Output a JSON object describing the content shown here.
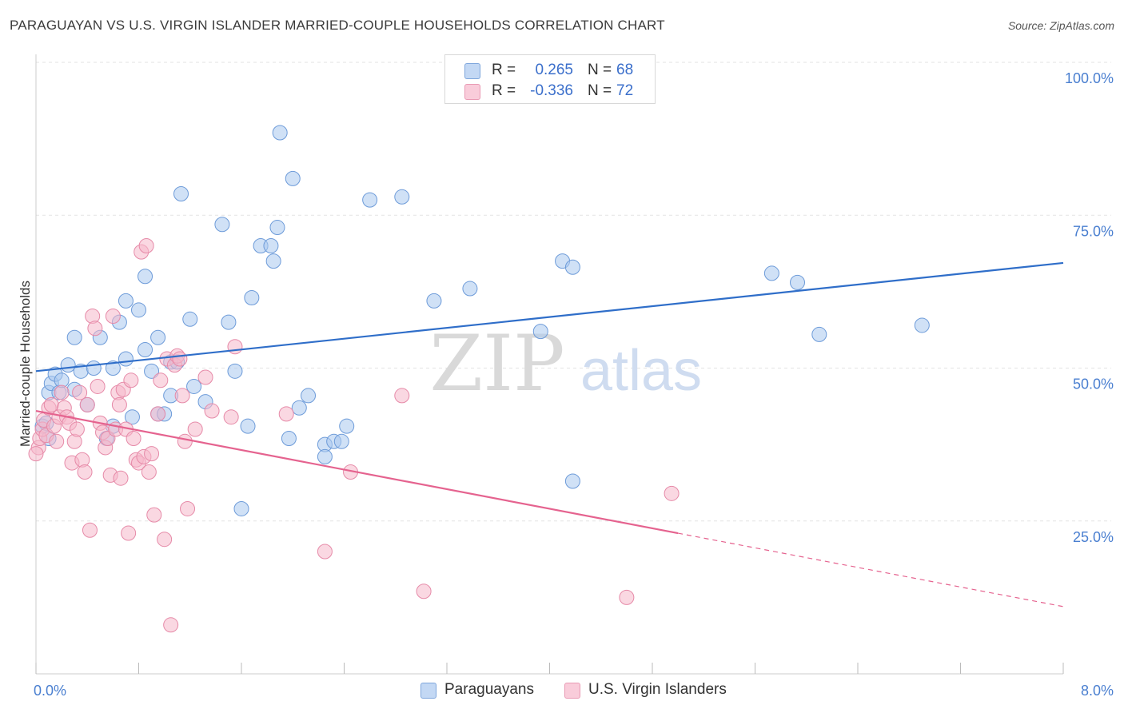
{
  "title": "PARAGUAYAN VS U.S. VIRGIN ISLANDER MARRIED-COUPLE HOUSEHOLDS CORRELATION CHART",
  "source": "Source: ZipAtlas.com",
  "watermark": {
    "zip": "ZIP",
    "atlas": "atlas"
  },
  "colors": {
    "blue_fill": "#a9c8ef",
    "blue_stroke": "#6d9bd9",
    "blue_line": "#2f6ec9",
    "pink_fill": "#f5b8cb",
    "pink_stroke": "#e68aa8",
    "pink_line": "#e5638f",
    "grid": "#e3e3e3",
    "tick_label": "#4a7fd0"
  },
  "legend_top": {
    "rows": [
      {
        "r_label": "R =",
        "r_value": "0.265",
        "n_label": "N =",
        "n_value": "68"
      },
      {
        "r_label": "R =",
        "r_value": "-0.336",
        "n_label": "N =",
        "n_value": "72"
      }
    ]
  },
  "legend_bottom": {
    "items": [
      "Paraguayans",
      "U.S. Virgin Islanders"
    ]
  },
  "chart_data": {
    "type": "scatter",
    "ylabel": "Married-couple Households",
    "xlabel": "",
    "xlim": [
      0,
      8
    ],
    "ylim": [
      0,
      100
    ],
    "x_tick_labels": [
      "0.0%",
      "8.0%"
    ],
    "y_ticks": [
      25,
      50,
      75,
      100
    ],
    "y_tick_labels": [
      "25.0%",
      "50.0%",
      "75.0%",
      "100.0%"
    ],
    "legend_placement": "top-center",
    "grid": true,
    "series": [
      {
        "name": "Paraguayans",
        "color": "#a9c8ef",
        "trend": {
          "x": [
            0,
            8
          ],
          "y": [
            49.5,
            67.2
          ],
          "dashed_from": null
        },
        "points": [
          [
            0.05,
            40.5
          ],
          [
            0.08,
            41
          ],
          [
            0.1,
            38.5
          ],
          [
            0.1,
            46
          ],
          [
            0.12,
            47.5
          ],
          [
            0.15,
            49
          ],
          [
            0.18,
            46
          ],
          [
            0.2,
            48
          ],
          [
            0.25,
            50.5
          ],
          [
            0.3,
            55
          ],
          [
            0.3,
            46.5
          ],
          [
            0.35,
            49.5
          ],
          [
            0.4,
            44
          ],
          [
            0.45,
            50
          ],
          [
            0.5,
            55
          ],
          [
            0.55,
            38.5
          ],
          [
            0.6,
            40.5
          ],
          [
            0.6,
            50
          ],
          [
            0.65,
            57.5
          ],
          [
            0.7,
            61
          ],
          [
            0.7,
            51.5
          ],
          [
            0.75,
            42
          ],
          [
            0.8,
            59.5
          ],
          [
            0.85,
            65
          ],
          [
            0.85,
            53
          ],
          [
            0.9,
            49.5
          ],
          [
            0.95,
            42.5
          ],
          [
            0.95,
            55
          ],
          [
            1.0,
            42.5
          ],
          [
            1.05,
            51
          ],
          [
            1.05,
            45.5
          ],
          [
            1.1,
            51
          ],
          [
            1.13,
            78.5
          ],
          [
            1.2,
            58
          ],
          [
            1.23,
            47
          ],
          [
            1.32,
            44.5
          ],
          [
            1.45,
            73.5
          ],
          [
            1.5,
            57.5
          ],
          [
            1.55,
            49.5
          ],
          [
            1.6,
            27
          ],
          [
            1.65,
            40.5
          ],
          [
            1.68,
            61.5
          ],
          [
            1.75,
            70
          ],
          [
            1.83,
            70
          ],
          [
            1.85,
            67.5
          ],
          [
            1.88,
            73
          ],
          [
            1.9,
            88.5
          ],
          [
            1.97,
            38.5
          ],
          [
            2.0,
            81
          ],
          [
            2.05,
            43.5
          ],
          [
            2.12,
            45.5
          ],
          [
            2.25,
            37.5
          ],
          [
            2.25,
            35.5
          ],
          [
            2.32,
            38
          ],
          [
            2.38,
            38
          ],
          [
            2.42,
            40.5
          ],
          [
            2.6,
            77.5
          ],
          [
            2.85,
            78
          ],
          [
            3.1,
            61
          ],
          [
            3.38,
            63
          ],
          [
            3.93,
            56
          ],
          [
            4.1,
            67.5
          ],
          [
            4.18,
            66.5
          ],
          [
            4.18,
            31.5
          ],
          [
            5.73,
            65.5
          ],
          [
            5.93,
            64
          ],
          [
            6.1,
            55.5
          ],
          [
            6.9,
            57
          ]
        ]
      },
      {
        "name": "U.S. Virgin Islanders",
        "color": "#f5b8cb",
        "trend": {
          "x": [
            0,
            8
          ],
          "y": [
            43,
            11
          ],
          "dashed_from": 5.0
        },
        "points": [
          [
            0.02,
            37
          ],
          [
            0.03,
            38.5
          ],
          [
            0.05,
            40
          ],
          [
            0.06,
            41.5
          ],
          [
            0.08,
            39
          ],
          [
            0.1,
            43.5
          ],
          [
            0.12,
            44
          ],
          [
            0.14,
            40.5
          ],
          [
            0.16,
            38
          ],
          [
            0.18,
            42
          ],
          [
            0.2,
            46
          ],
          [
            0.22,
            43.5
          ],
          [
            0.24,
            42
          ],
          [
            0.26,
            41
          ],
          [
            0.28,
            34.5
          ],
          [
            0.3,
            38
          ],
          [
            0.32,
            40
          ],
          [
            0.34,
            46
          ],
          [
            0.36,
            35
          ],
          [
            0.38,
            33
          ],
          [
            0.4,
            44
          ],
          [
            0.42,
            23.5
          ],
          [
            0.44,
            58.5
          ],
          [
            0.46,
            56.5
          ],
          [
            0.48,
            47
          ],
          [
            0.5,
            41
          ],
          [
            0.52,
            39.5
          ],
          [
            0.54,
            37
          ],
          [
            0.56,
            38.5
          ],
          [
            0.58,
            32.5
          ],
          [
            0.6,
            58.5
          ],
          [
            0.62,
            40
          ],
          [
            0.64,
            46
          ],
          [
            0.65,
            44
          ],
          [
            0.66,
            32
          ],
          [
            0.68,
            46.5
          ],
          [
            0.7,
            40
          ],
          [
            0.72,
            23
          ],
          [
            0.74,
            48
          ],
          [
            0.76,
            38.5
          ],
          [
            0.78,
            35
          ],
          [
            0.8,
            34.5
          ],
          [
            0.82,
            69
          ],
          [
            0.84,
            35.5
          ],
          [
            0.86,
            70
          ],
          [
            0.88,
            33
          ],
          [
            0.9,
            36
          ],
          [
            0.92,
            26
          ],
          [
            0.95,
            42.5
          ],
          [
            0.97,
            48
          ],
          [
            1.0,
            22
          ],
          [
            1.02,
            51.5
          ],
          [
            1.05,
            8
          ],
          [
            1.08,
            50.5
          ],
          [
            1.1,
            52
          ],
          [
            1.12,
            51.5
          ],
          [
            1.14,
            45.5
          ],
          [
            1.16,
            38
          ],
          [
            1.18,
            27
          ],
          [
            1.24,
            40
          ],
          [
            1.32,
            48.5
          ],
          [
            1.37,
            43
          ],
          [
            1.52,
            42
          ],
          [
            1.55,
            53.5
          ],
          [
            1.95,
            42.5
          ],
          [
            2.25,
            20
          ],
          [
            2.45,
            33
          ],
          [
            2.85,
            45.5
          ],
          [
            3.02,
            13.5
          ],
          [
            4.6,
            12.5
          ],
          [
            4.95,
            29.5
          ],
          [
            0.0,
            36
          ]
        ]
      }
    ]
  }
}
